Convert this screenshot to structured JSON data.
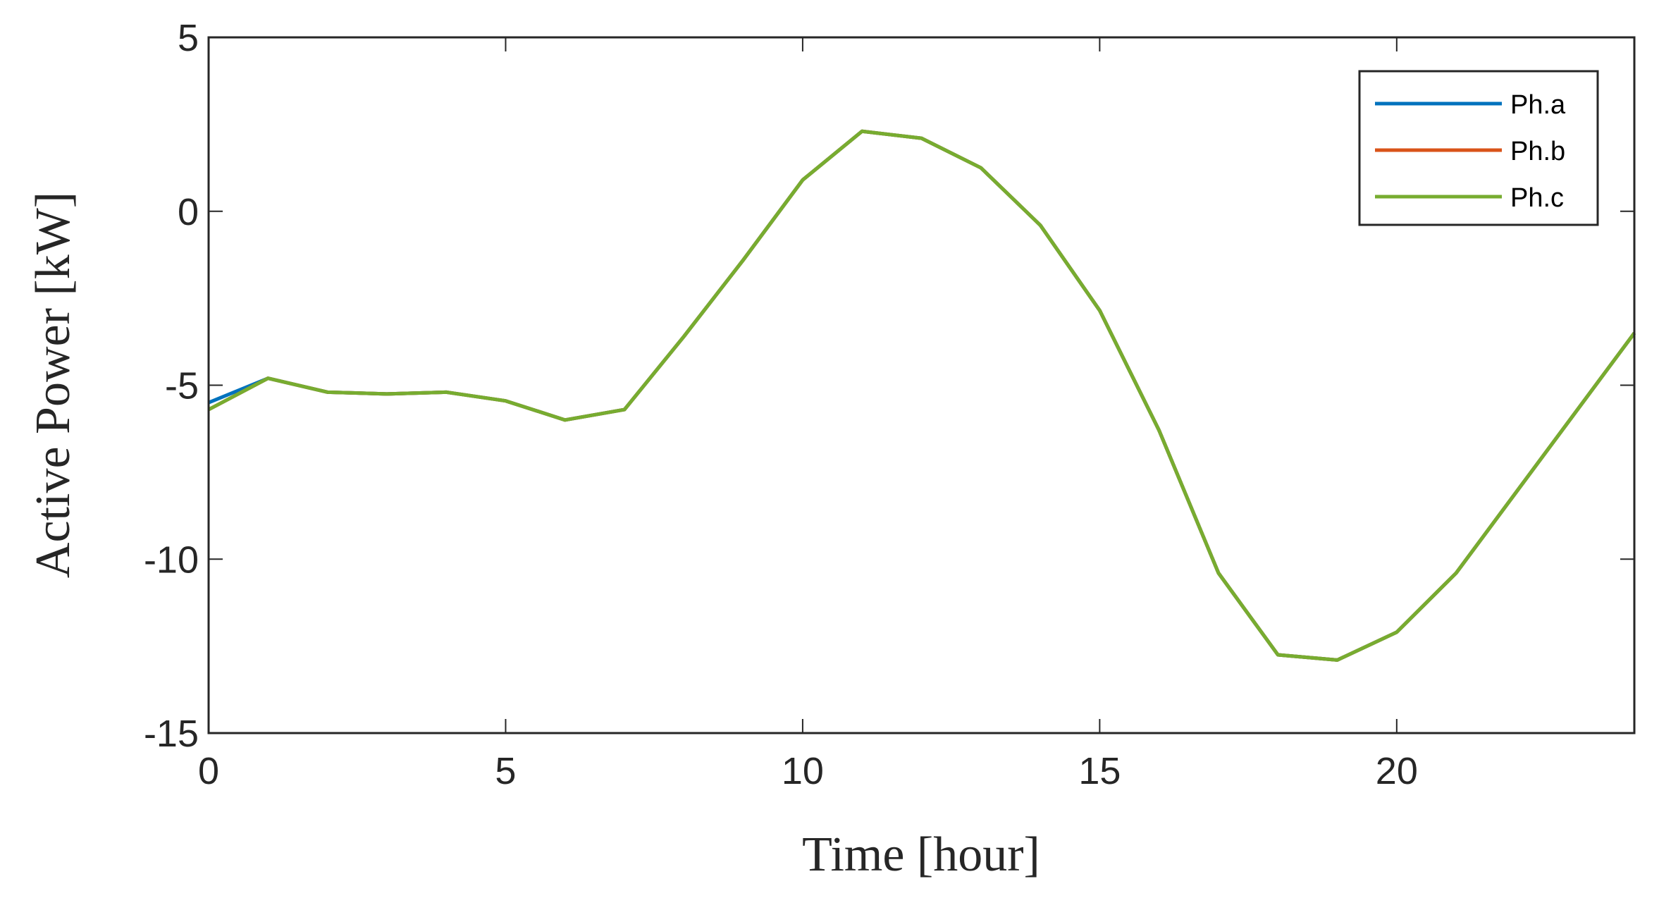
{
  "chart_data": {
    "type": "line",
    "x_label": "Time [hour]",
    "y_label": "Active Power [kW]",
    "x": [
      0,
      1,
      2,
      3,
      4,
      5,
      6,
      7,
      8,
      9,
      10,
      11,
      12,
      13,
      14,
      15,
      16,
      17,
      18,
      19,
      20,
      21,
      22,
      23,
      24
    ],
    "series": [
      {
        "name": "Ph.a",
        "color": "#0072bd",
        "values": [
          -5.5,
          -4.8,
          -5.2,
          -5.25,
          -5.2,
          -5.45,
          -6.0,
          -5.7,
          -3.6,
          -1.4,
          0.9,
          2.3,
          2.1,
          1.25,
          -0.4,
          -2.85,
          -6.3,
          -10.4,
          -12.75,
          -12.9,
          -12.1,
          -10.4,
          -8.1,
          -5.8,
          -3.5
        ]
      },
      {
        "name": "Ph.b",
        "color": "#d95319",
        "values": [
          -5.7,
          -4.8,
          -5.2,
          -5.25,
          -5.2,
          -5.45,
          -6.0,
          -5.7,
          -3.6,
          -1.4,
          0.9,
          2.3,
          2.1,
          1.25,
          -0.4,
          -2.85,
          -6.3,
          -10.4,
          -12.75,
          -12.9,
          -12.1,
          -10.4,
          -8.1,
          -5.8,
          -3.5
        ]
      },
      {
        "name": "Ph.c",
        "color": "#77ac30",
        "values": [
          -5.7,
          -4.8,
          -5.2,
          -5.25,
          -5.2,
          -5.45,
          -6.0,
          -5.7,
          -3.6,
          -1.4,
          0.9,
          2.3,
          2.1,
          1.25,
          -0.4,
          -2.85,
          -6.3,
          -10.4,
          -12.75,
          -12.9,
          -12.1,
          -10.4,
          -8.1,
          -5.8,
          -3.5
        ]
      }
    ],
    "xlim": [
      0,
      24
    ],
    "ylim": [
      -15,
      5
    ],
    "xticks": [
      0,
      5,
      10,
      15,
      20
    ],
    "yticks": [
      -15,
      -10,
      -5,
      0,
      5
    ],
    "legend": "top-right"
  }
}
